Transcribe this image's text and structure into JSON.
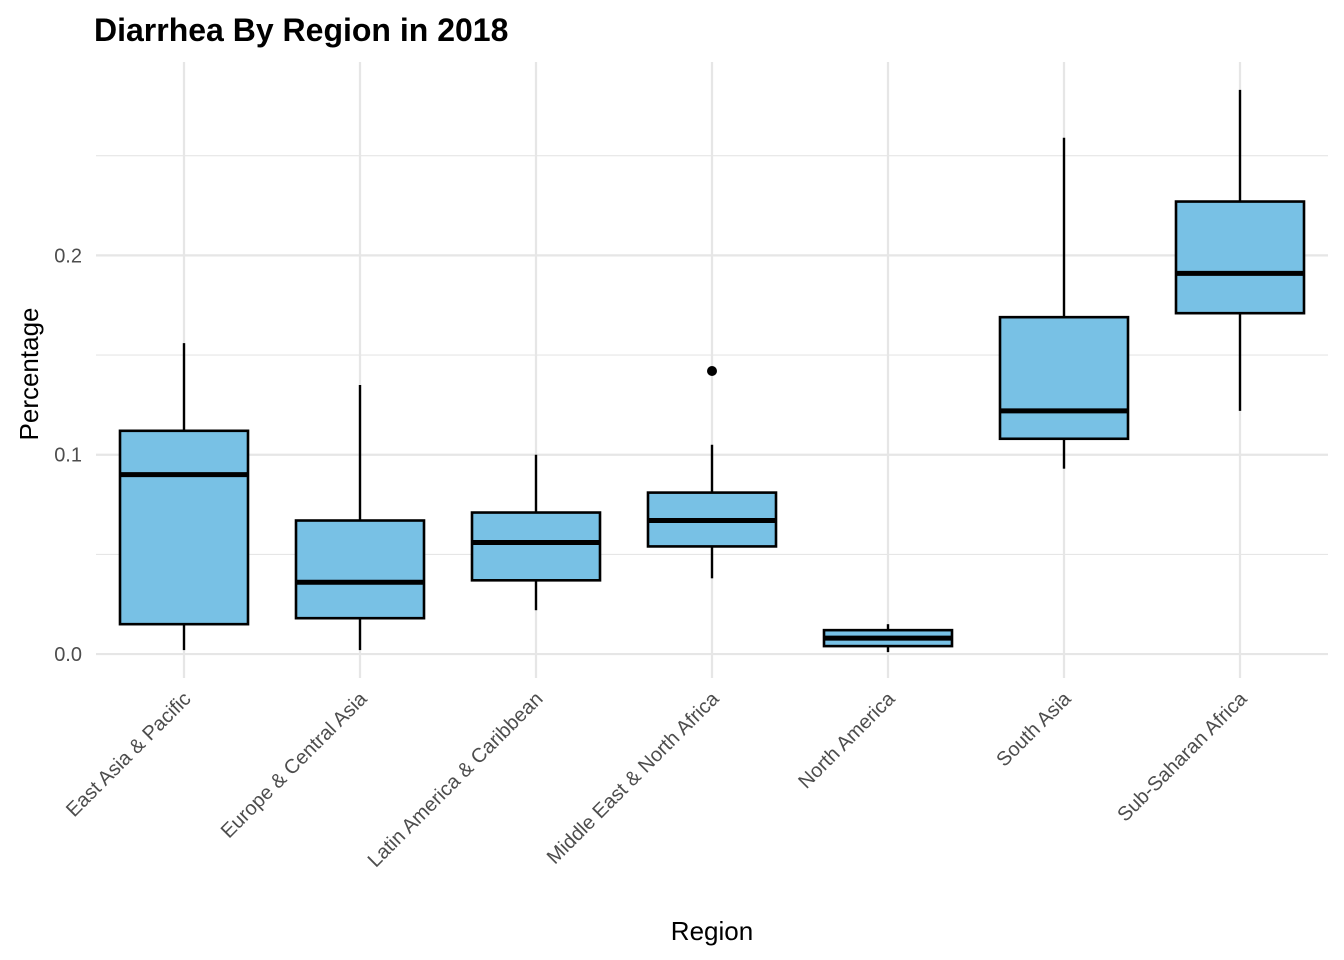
{
  "chart_data": {
    "type": "boxplot",
    "title": "Diarrhea By Region in 2018",
    "xlabel": "Region",
    "ylabel": "Percentage",
    "ylim": [
      -0.012,
      0.297
    ],
    "yticks": [
      0.0,
      0.1,
      0.2
    ],
    "ytick_labels": [
      "0.0",
      "0.1",
      "0.2"
    ],
    "grid": true,
    "legend": "none",
    "colors": {
      "box_fill": "#78C1E5",
      "box_stroke": "#000000",
      "grid": "#E6E6E6",
      "tick_text": "#4D4D4D"
    },
    "categories": [
      "East Asia & Pacific",
      "Europe & Central Asia",
      "Latin America & Caribbean",
      "Middle East & North Africa",
      "North America",
      "South Asia",
      "Sub-Saharan Africa"
    ],
    "boxes": [
      {
        "category": "East Asia & Pacific",
        "whisker_low": 0.002,
        "q1": 0.015,
        "median": 0.09,
        "q3": 0.112,
        "whisker_high": 0.156,
        "outliers": []
      },
      {
        "category": "Europe & Central Asia",
        "whisker_low": 0.002,
        "q1": 0.018,
        "median": 0.036,
        "q3": 0.067,
        "whisker_high": 0.135,
        "outliers": []
      },
      {
        "category": "Latin America & Caribbean",
        "whisker_low": 0.022,
        "q1": 0.037,
        "median": 0.056,
        "q3": 0.071,
        "whisker_high": 0.1,
        "outliers": []
      },
      {
        "category": "Middle East & North Africa",
        "whisker_low": 0.038,
        "q1": 0.054,
        "median": 0.067,
        "q3": 0.081,
        "whisker_high": 0.105,
        "outliers": [
          0.142
        ]
      },
      {
        "category": "North America",
        "whisker_low": 0.001,
        "q1": 0.004,
        "median": 0.008,
        "q3": 0.012,
        "whisker_high": 0.015,
        "outliers": []
      },
      {
        "category": "South Asia",
        "whisker_low": 0.093,
        "q1": 0.108,
        "median": 0.122,
        "q3": 0.169,
        "whisker_high": 0.259,
        "outliers": []
      },
      {
        "category": "Sub-Saharan Africa",
        "whisker_low": 0.122,
        "q1": 0.171,
        "median": 0.191,
        "q3": 0.227,
        "whisker_high": 0.283,
        "outliers": []
      }
    ]
  }
}
